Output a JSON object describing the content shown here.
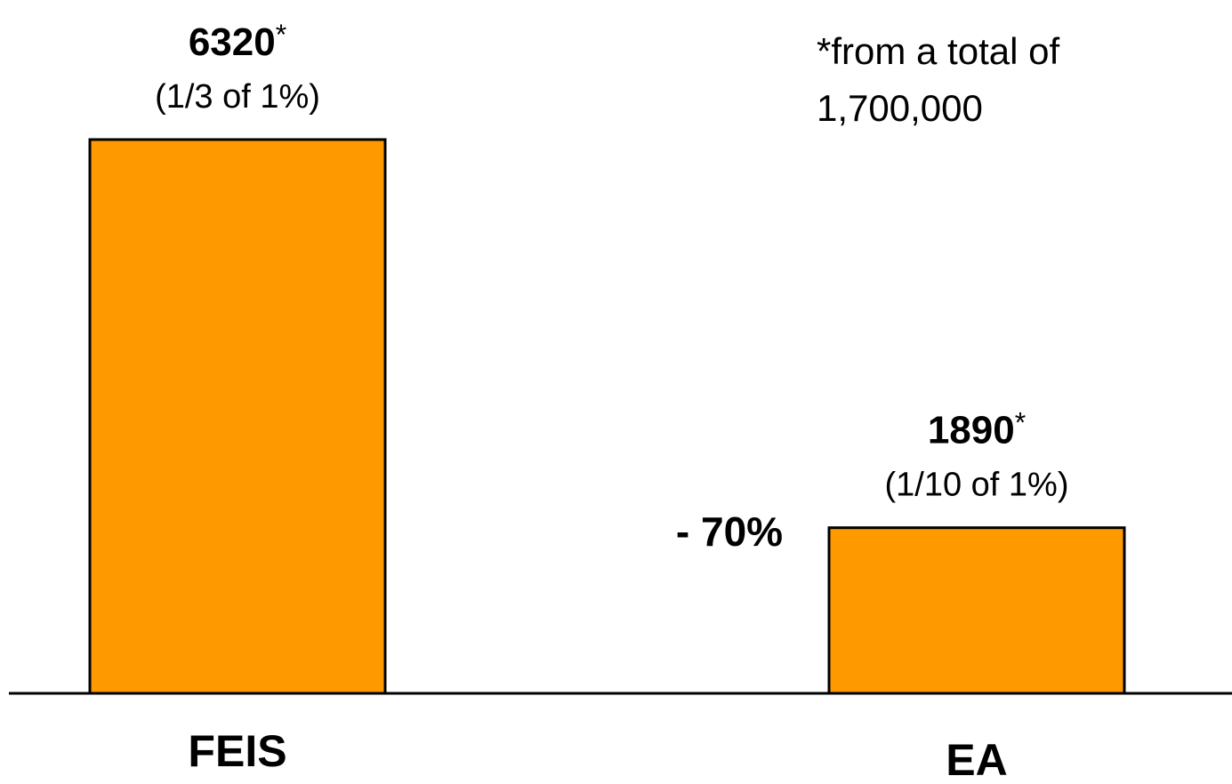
{
  "chart_data": {
    "type": "bar",
    "categories": [
      "FEIS",
      "EA"
    ],
    "values": [
      6320,
      1890
    ],
    "bar_color": "#FF9900",
    "bar_stroke": "#000000",
    "ylim": [
      0,
      6320
    ],
    "grid": false,
    "data_labels": [
      {
        "value_text": "6320",
        "star": "*",
        "sub": "(1/3 of 1%)"
      },
      {
        "value_text": "1890",
        "star": "*",
        "sub": "(1/10 of 1%)"
      }
    ],
    "annotations": {
      "change": "- 70%",
      "footnote_line1": "*from a total of",
      "footnote_line2": "1,700,000"
    }
  }
}
